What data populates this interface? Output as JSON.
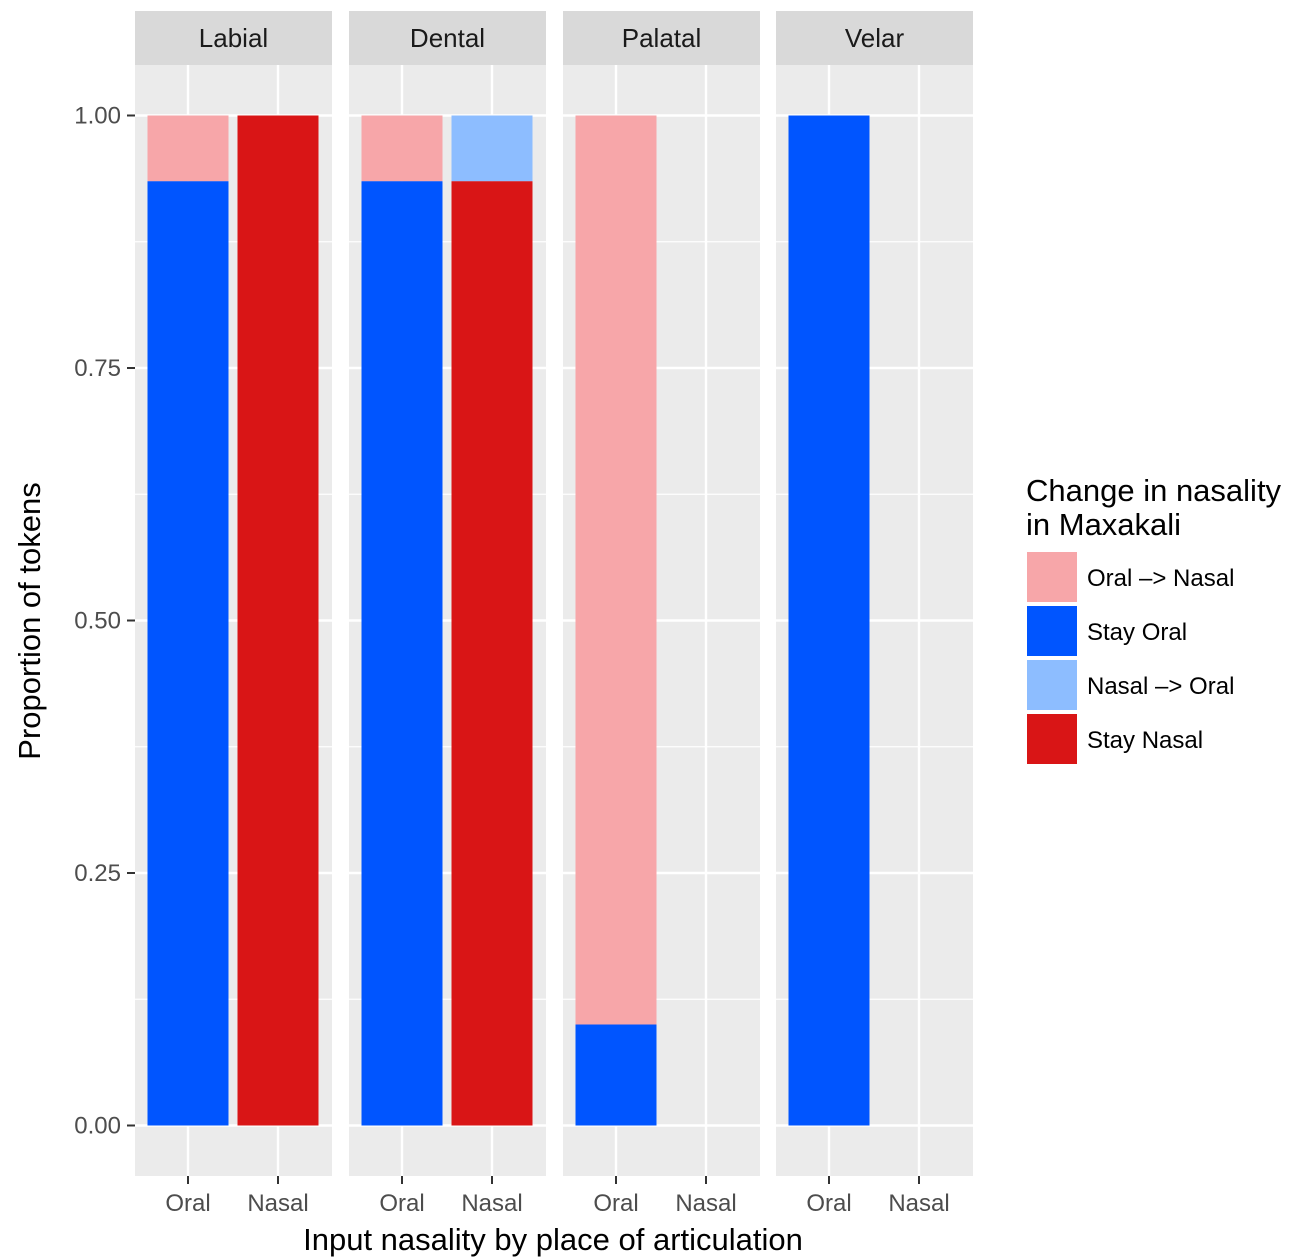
{
  "chart_data": {
    "type": "bar",
    "stacked": true,
    "facets": [
      {
        "name": "Labial",
        "bars": [
          {
            "x": "Oral",
            "segments": [
              {
                "series": "Stay Oral",
                "value": 0.935
              },
              {
                "series": "Oral -> Nasal",
                "value": 0.065
              }
            ]
          },
          {
            "x": "Nasal",
            "segments": [
              {
                "series": "Stay Nasal",
                "value": 1.0
              }
            ]
          }
        ]
      },
      {
        "name": "Dental",
        "bars": [
          {
            "x": "Oral",
            "segments": [
              {
                "series": "Stay Oral",
                "value": 0.935
              },
              {
                "series": "Oral -> Nasal",
                "value": 0.065
              }
            ]
          },
          {
            "x": "Nasal",
            "segments": [
              {
                "series": "Stay Nasal",
                "value": 0.935
              },
              {
                "series": "Nasal -> Oral",
                "value": 0.065
              }
            ]
          }
        ]
      },
      {
        "name": "Palatal",
        "bars": [
          {
            "x": "Oral",
            "segments": [
              {
                "series": "Stay Oral",
                "value": 0.1
              },
              {
                "series": "Oral -> Nasal",
                "value": 0.9
              }
            ]
          }
        ]
      },
      {
        "name": "Velar",
        "bars": [
          {
            "x": "Oral",
            "segments": [
              {
                "series": "Stay Oral",
                "value": 1.0
              }
            ]
          }
        ]
      }
    ],
    "categories": [
      "Oral",
      "Nasal"
    ],
    "yticks": [
      0,
      0.25,
      0.5,
      0.75,
      1
    ],
    "ytick_labels": [
      "0.00",
      "0.25",
      "0.50",
      "0.75",
      "1.00"
    ],
    "ylim": [
      -0.05,
      1.05
    ],
    "xlabel": "Input nasality by place of articulation",
    "ylabel": "Proportion of tokens",
    "grid": true,
    "legend": {
      "title_lines": [
        "Change in nasality",
        "in Maxakali"
      ],
      "position": "right",
      "entries": [
        {
          "label": "Oral –> Nasal",
          "series": "Oral -> Nasal",
          "color": "#F7A6A9"
        },
        {
          "label": "Stay Oral",
          "series": "Stay Oral",
          "color": "#0055FF"
        },
        {
          "label": "Nasal –> Oral",
          "series": "Nasal -> Oral",
          "color": "#8DBDFF"
        },
        {
          "label": "Stay Nasal",
          "series": "Stay Nasal",
          "color": "#D91516"
        }
      ]
    },
    "colors": {
      "panel_background": "#EBEBEB",
      "strip_background": "#D9D9D9",
      "grid": "#FFFFFF"
    }
  }
}
